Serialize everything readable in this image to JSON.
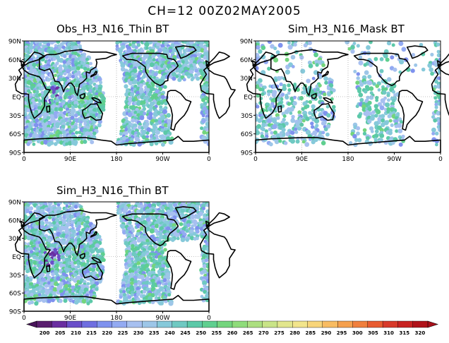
{
  "header": {
    "title": "CH=12    00Z02MAY2005"
  },
  "panels": [
    {
      "id": "obs-thin",
      "title": "Obs_H3_N16_Thin BT",
      "coverage": "swaths-with-gap"
    },
    {
      "id": "sim-mask",
      "title": "Sim_H3_N16_Mask BT",
      "coverage": "sparse-masked"
    },
    {
      "id": "sim-thin",
      "title": "Sim_H3_N16_Thin BT",
      "coverage": "swaths-with-gap"
    }
  ],
  "axes": {
    "lat_ticks": [
      "90N",
      "60N",
      "30N",
      "EQ",
      "30S",
      "60S",
      "90S"
    ],
    "lon_ticks": [
      "0",
      "90E",
      "180",
      "90W",
      "0"
    ]
  },
  "colorbar": {
    "labels": [
      "200",
      "205",
      "210",
      "215",
      "220",
      "225",
      "230",
      "235",
      "240",
      "245",
      "250",
      "255",
      "260",
      "265",
      "270",
      "275",
      "280",
      "285",
      "290",
      "295",
      "300",
      "305",
      "310",
      "315",
      "320"
    ],
    "colors": [
      "#5a1e6e",
      "#6a2ea0",
      "#6a4fc9",
      "#6f6ee0",
      "#7f92ee",
      "#93aaf2",
      "#a7c0f0",
      "#9dc6e8",
      "#86c9da",
      "#6fc9c2",
      "#5cc9a8",
      "#5fcf8f",
      "#74d57d",
      "#8fdc7a",
      "#acdf80",
      "#c9e487",
      "#e2e68d",
      "#f2e58c",
      "#f8d57a",
      "#f8bc62",
      "#f5a04e",
      "#f07f3d",
      "#e85b30",
      "#d83a2a",
      "#c82322",
      "#b0131a"
    ],
    "under_color": "#4a145c",
    "over_color": "#a8101a"
  }
}
